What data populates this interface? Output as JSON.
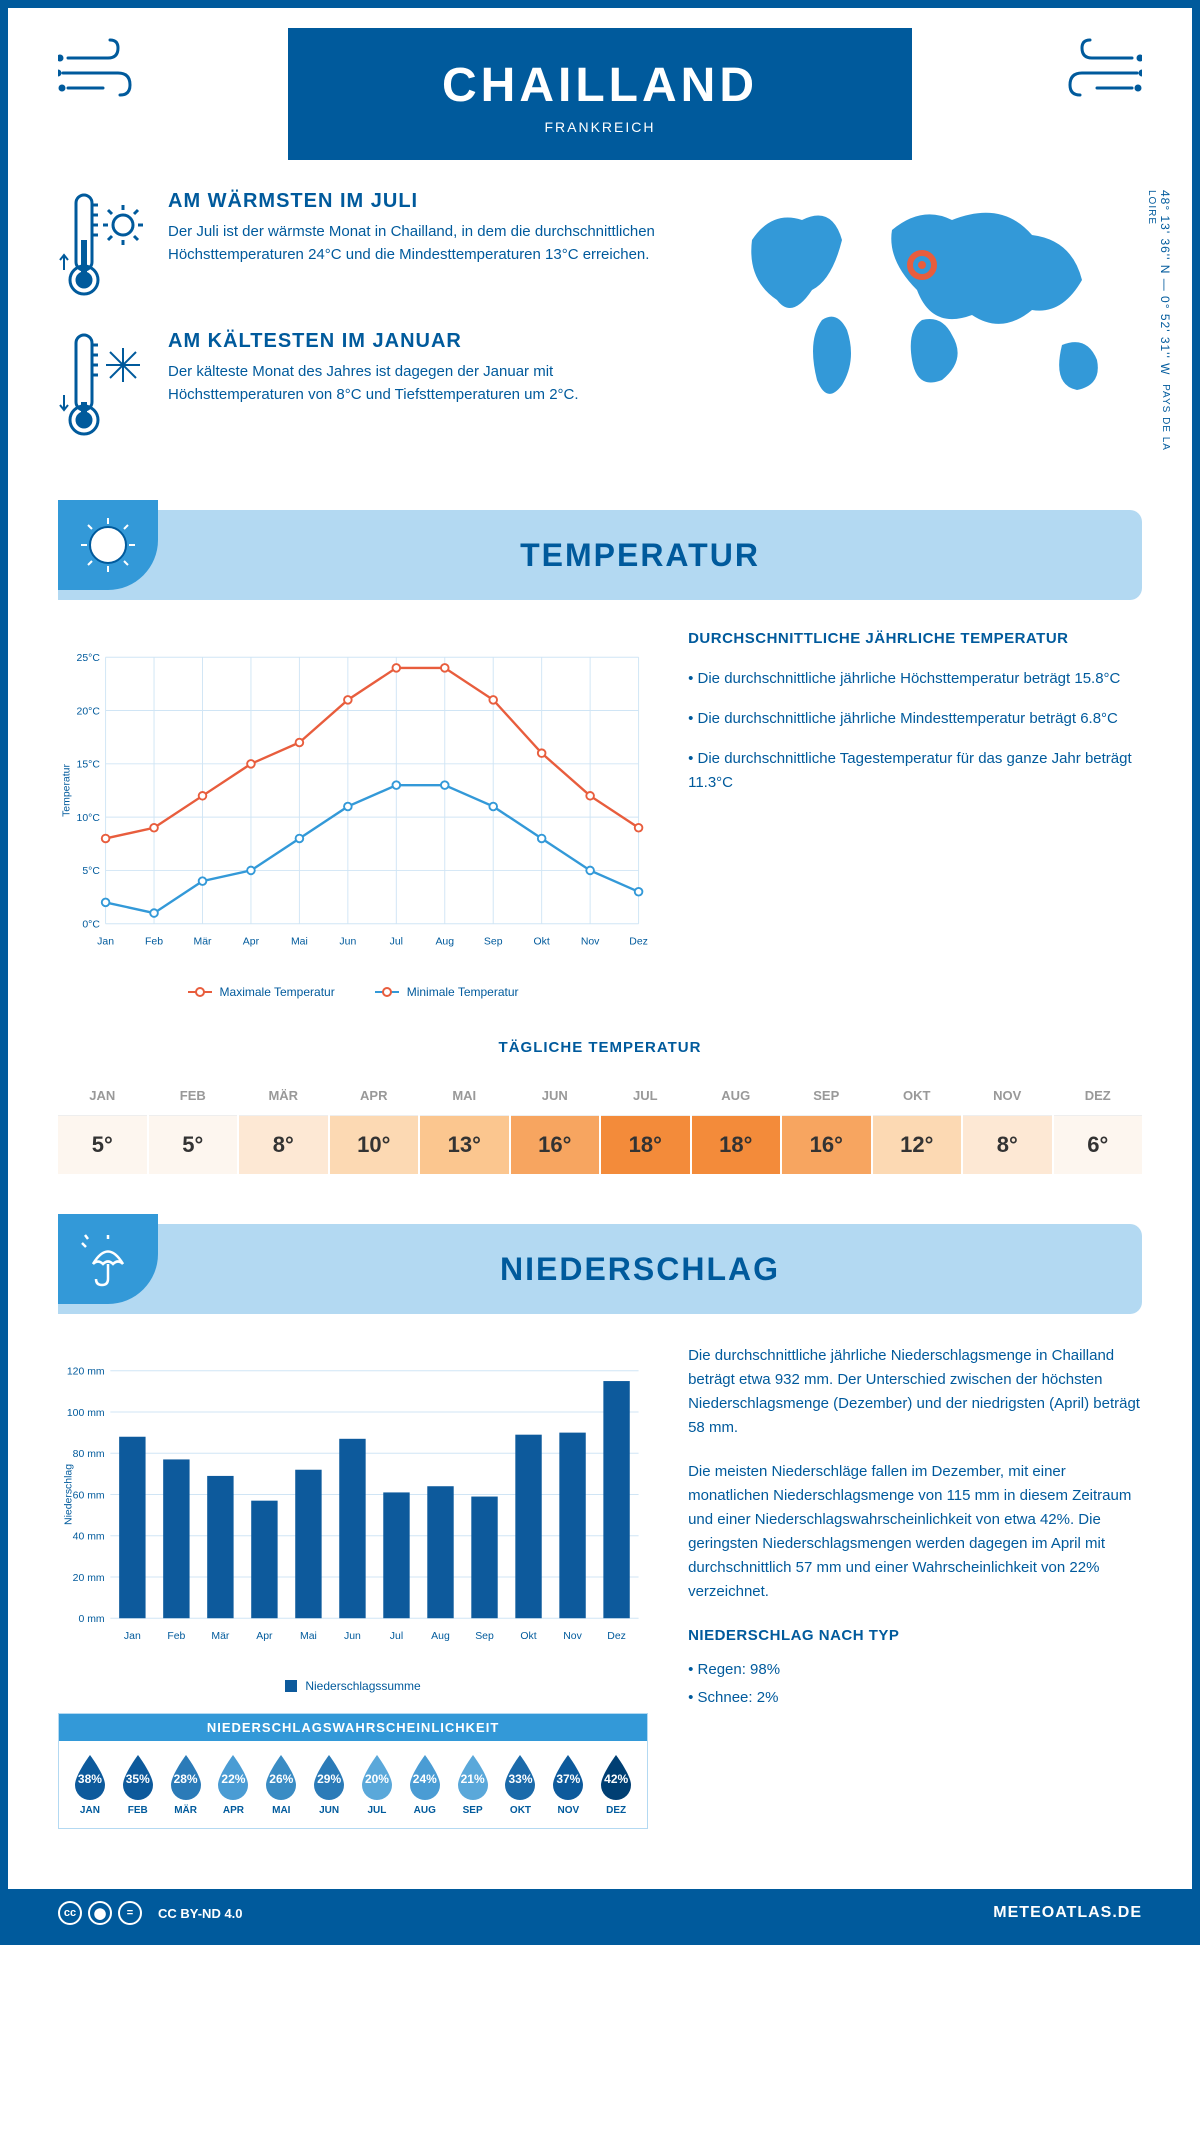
{
  "header": {
    "title": "CHAILLAND",
    "subtitle": "FRANKREICH"
  },
  "coords": {
    "lat": "48° 13' 36'' N — 0° 52' 31'' W",
    "region": "PAYS DE LA LOIRE"
  },
  "intro": {
    "warm": {
      "title": "AM WÄRMSTEN IM JULI",
      "text": "Der Juli ist der wärmste Monat in Chailland, in dem die durchschnittlichen Höchsttemperaturen 24°C und die Mindesttemperaturen 13°C erreichen."
    },
    "cold": {
      "title": "AM KÄLTESTEN IM JANUAR",
      "text": "Der kälteste Monat des Jahres ist dagegen der Januar mit Höchsttemperaturen von 8°C und Tiefsttemperaturen um 2°C."
    }
  },
  "temp_section": {
    "title": "TEMPERATUR",
    "chart": {
      "type": "line",
      "months": [
        "Jan",
        "Feb",
        "Mär",
        "Apr",
        "Mai",
        "Jun",
        "Jul",
        "Aug",
        "Sep",
        "Okt",
        "Nov",
        "Dez"
      ],
      "ylabel": "Temperatur",
      "ylim": [
        0,
        25
      ],
      "ytick_step": 5,
      "ytick_suffix": "°C",
      "grid_color": "#d0e5f5",
      "series": [
        {
          "name": "Maximale Temperatur",
          "color": "#e85d3d",
          "values": [
            8,
            9,
            12,
            15,
            17,
            21,
            24,
            24,
            21,
            16,
            12,
            9
          ]
        },
        {
          "name": "Minimale Temperatur",
          "color": "#3399d8",
          "values": [
            2,
            1,
            4,
            5,
            8,
            11,
            13,
            13,
            11,
            8,
            5,
            3
          ]
        }
      ]
    },
    "facts": {
      "title": "DURCHSCHNITTLICHE JÄHRLICHE TEMPERATUR",
      "f1": "• Die durchschnittliche jährliche Höchsttemperatur beträgt 15.8°C",
      "f2": "• Die durchschnittliche jährliche Mindesttemperatur beträgt 6.8°C",
      "f3": "• Die durchschnittliche Tagestemperatur für das ganze Jahr beträgt 11.3°C"
    },
    "daily": {
      "title": "TÄGLICHE TEMPERATUR",
      "months": [
        "JAN",
        "FEB",
        "MÄR",
        "APR",
        "MAI",
        "JUN",
        "JUL",
        "AUG",
        "SEP",
        "OKT",
        "NOV",
        "DEZ"
      ],
      "values": [
        "5°",
        "5°",
        "8°",
        "10°",
        "13°",
        "16°",
        "18°",
        "18°",
        "16°",
        "12°",
        "8°",
        "6°"
      ],
      "colors": [
        "#fdf6ef",
        "#fdf6ef",
        "#fde8d4",
        "#fcd9b3",
        "#fbc68f",
        "#f7a560",
        "#f38b3a",
        "#f38b3a",
        "#f7a560",
        "#fcd9b3",
        "#fde8d4",
        "#fdf6ef"
      ]
    }
  },
  "precip_section": {
    "title": "NIEDERSCHLAG",
    "chart": {
      "type": "bar",
      "months": [
        "Jan",
        "Feb",
        "Mär",
        "Apr",
        "Mai",
        "Jun",
        "Jul",
        "Aug",
        "Sep",
        "Okt",
        "Nov",
        "Dez"
      ],
      "ylabel": "Niederschlag",
      "ylim": [
        0,
        120
      ],
      "ytick_step": 20,
      "ytick_suffix": " mm",
      "bar_color": "#0d5a9c",
      "grid_color": "#d0e5f5",
      "values": [
        88,
        77,
        69,
        57,
        72,
        87,
        61,
        64,
        59,
        89,
        90,
        115
      ],
      "legend": "Niederschlagssumme"
    },
    "text": {
      "p1": "Die durchschnittliche jährliche Niederschlagsmenge in Chailland beträgt etwa 932 mm. Der Unterschied zwischen der höchsten Niederschlagsmenge (Dezember) und der niedrigsten (April) beträgt 58 mm.",
      "p2": "Die meisten Niederschläge fallen im Dezember, mit einer monatlichen Niederschlagsmenge von 115 mm in diesem Zeitraum und einer Niederschlagswahrscheinlichkeit von etwa 42%. Die geringsten Niederschlagsmengen werden dagegen im April mit durchschnittlich 57 mm und einer Wahrscheinlichkeit von 22% verzeichnet.",
      "type_title": "NIEDERSCHLAG NACH TYP",
      "type1": "• Regen: 98%",
      "type2": "• Schnee: 2%"
    },
    "prob": {
      "title": "NIEDERSCHLAGSWAHRSCHEINLICHKEIT",
      "months": [
        "JAN",
        "FEB",
        "MÄR",
        "APR",
        "MAI",
        "JUN",
        "JUL",
        "AUG",
        "SEP",
        "OKT",
        "NOV",
        "DEZ"
      ],
      "values": [
        "38%",
        "35%",
        "28%",
        "22%",
        "26%",
        "29%",
        "20%",
        "24%",
        "21%",
        "33%",
        "37%",
        "42%"
      ],
      "colors": [
        "#0d5a9c",
        "#0d5a9c",
        "#2b7bb8",
        "#4a9cd4",
        "#3a8cc4",
        "#2b7bb8",
        "#5aa8da",
        "#4a9cd4",
        "#5aa8da",
        "#1b6aaa",
        "#0d5a9c",
        "#003f73"
      ]
    }
  },
  "footer": {
    "license": "CC BY-ND 4.0",
    "brand": "METEOATLAS.DE"
  },
  "palette": {
    "primary": "#005a9c",
    "light": "#b3d9f2",
    "mid": "#3399d8",
    "orange": "#e85d3d"
  }
}
